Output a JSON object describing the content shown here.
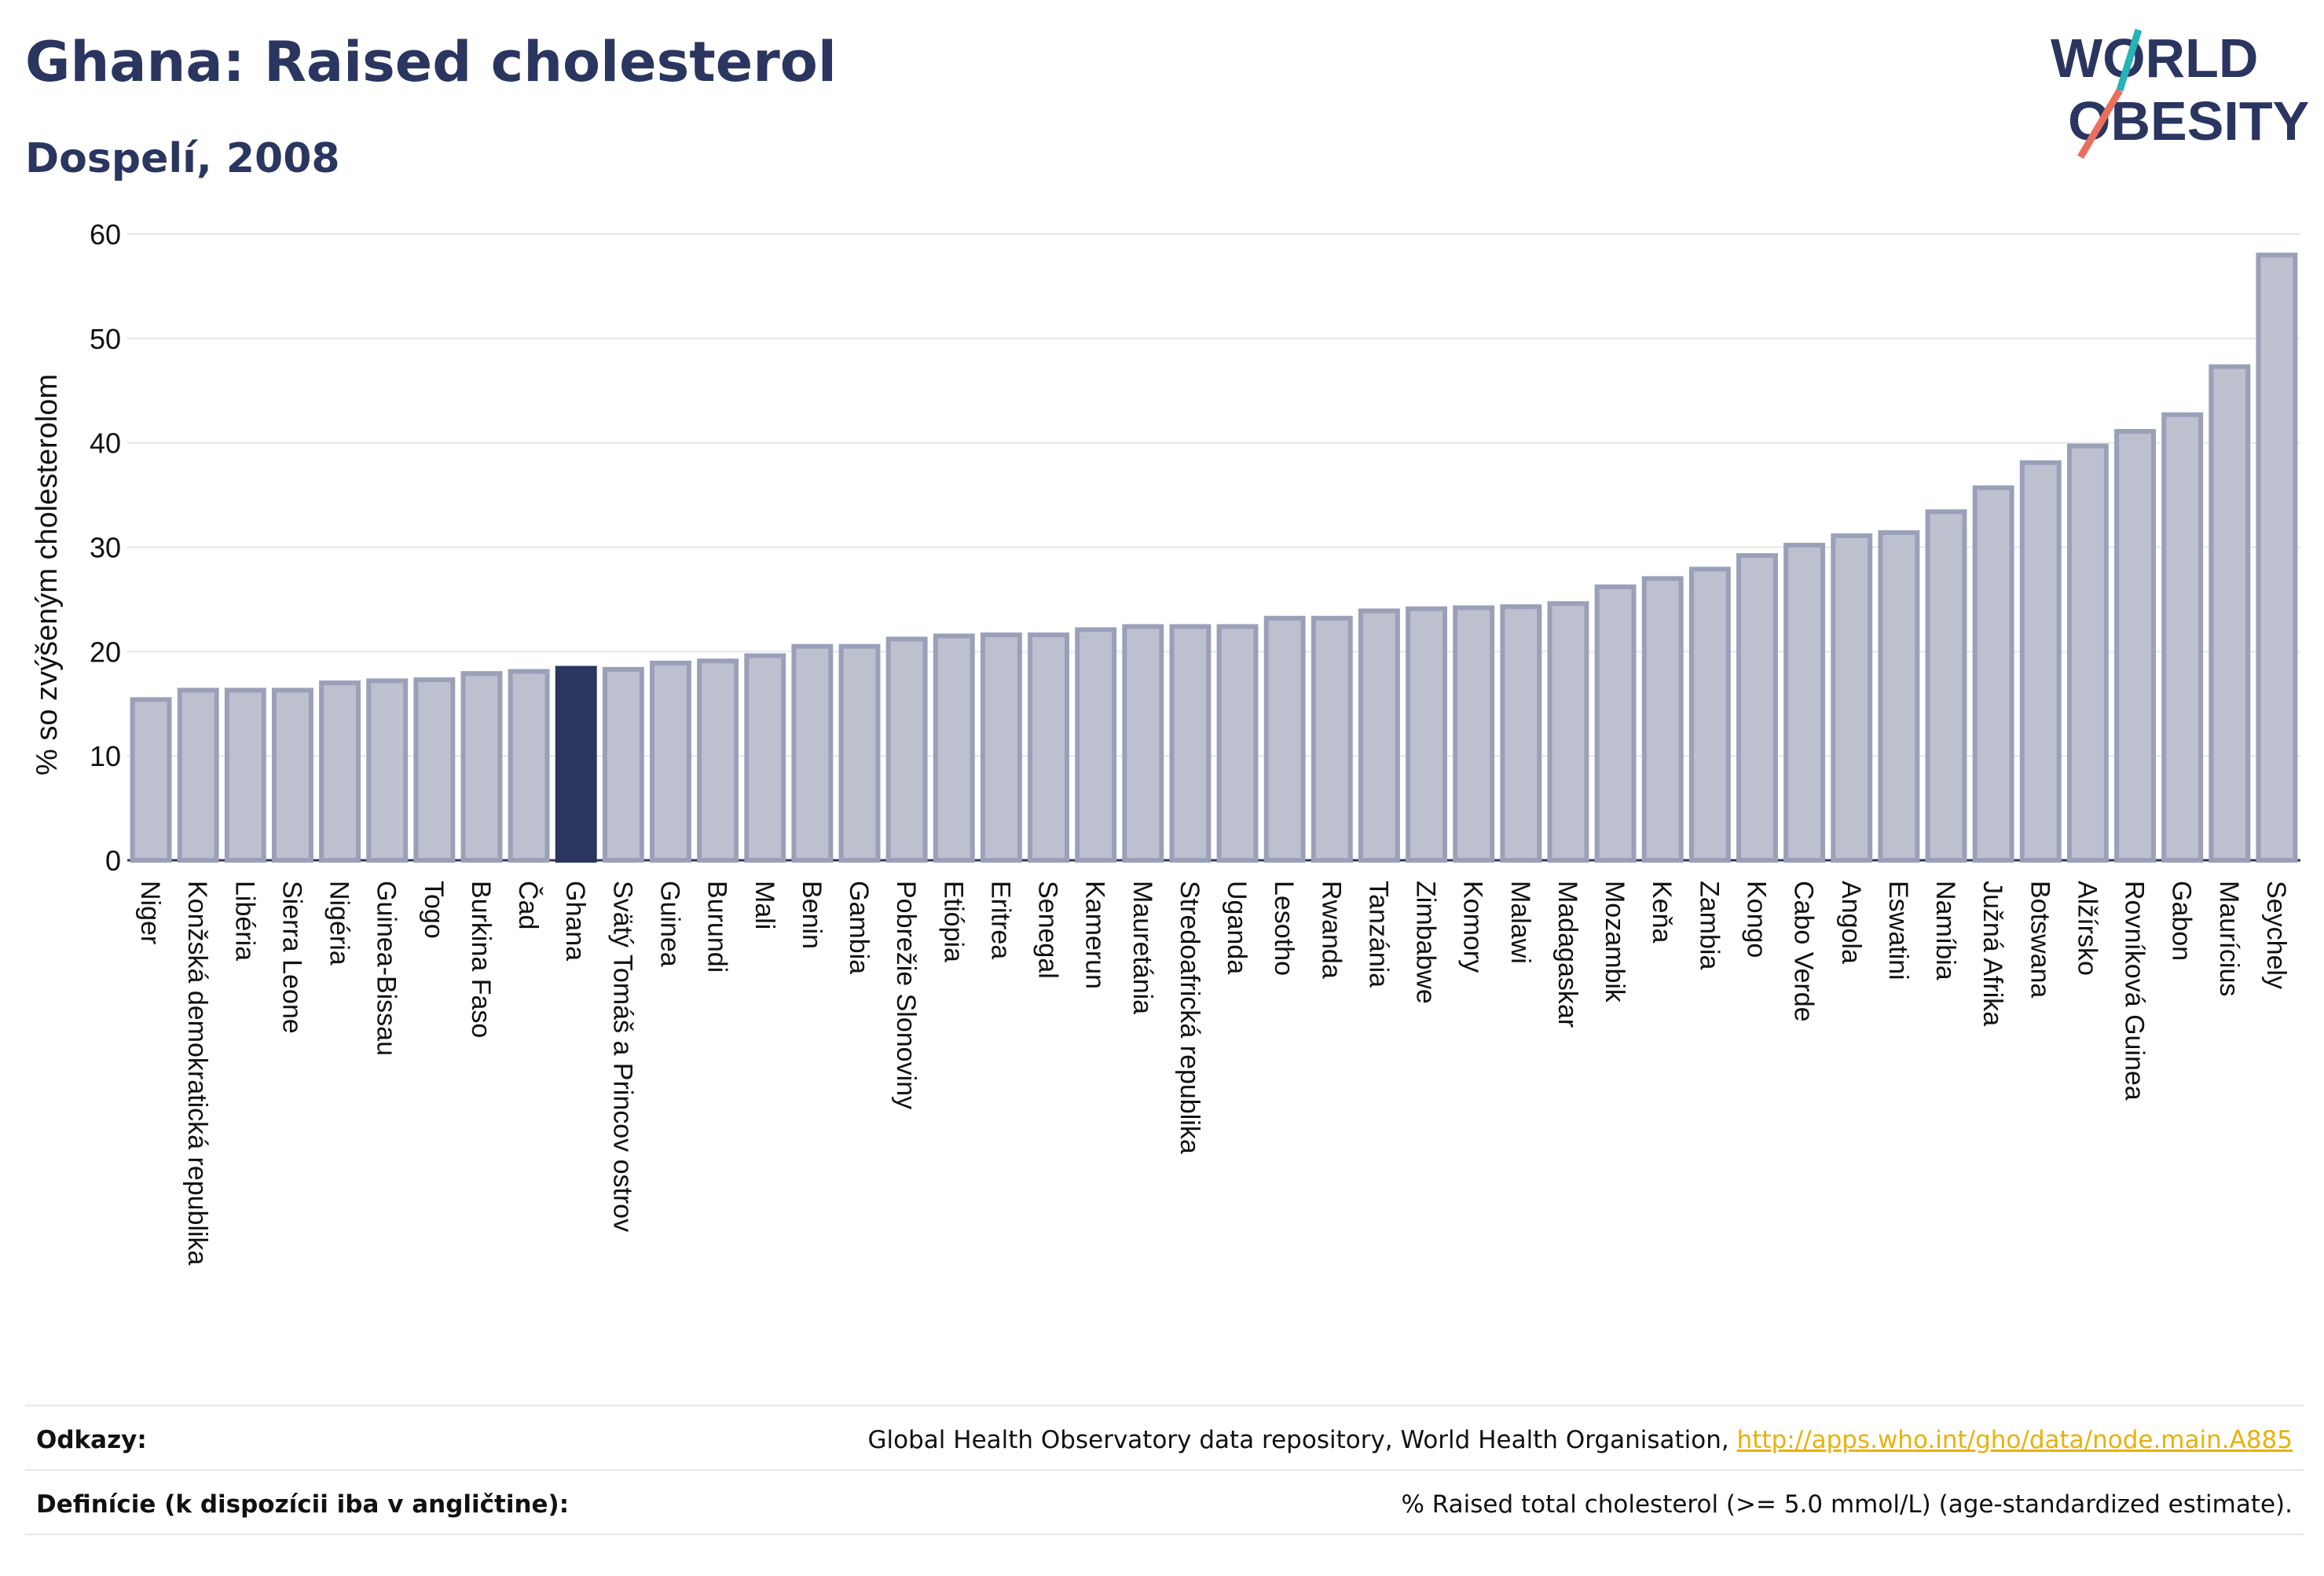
{
  "title": "Ghana: Raised cholesterol",
  "subtitle": "Dospelí, 2008",
  "logo": {
    "line1": "WORLD",
    "line2": "OBESITY"
  },
  "colors": {
    "bar": "#bcc0cf",
    "bar_stroke": "#9aa0b8",
    "highlight": "#2a3560",
    "text": "#2a3560",
    "link": "#e8b10a"
  },
  "footer": {
    "references_label": "Odkazy:",
    "references_text": "Global Health Observatory data repository, World Health Organisation, ",
    "references_link": "http://apps.who.int/gho/data/node.main.A885",
    "definitions_label": "Definície (k dispozícii iba v angličtine):",
    "definitions_text": "% Raised total cholesterol (>= 5.0 mmol/L) (age-standardized estimate)."
  },
  "chart_data": {
    "type": "bar",
    "ylabel": "% so zvýšeným cholesterolom",
    "ylim": [
      0,
      60
    ],
    "yticks": [
      0,
      10,
      20,
      30,
      40,
      50,
      60
    ],
    "highlight": "Ghana",
    "categories": [
      "Niger",
      "Konžská demokratická republika",
      "Libéria",
      "Sierra Leone",
      "Nigéria",
      "Guinea-Bissau",
      "Togo",
      "Burkina Faso",
      "Čad",
      "Ghana",
      "Svätý Tomáš a Princov ostrov",
      "Guinea",
      "Burundi",
      "Mali",
      "Benin",
      "Gambia",
      "Pobrežie Slonoviny",
      "Etiópia",
      "Eritrea",
      "Senegal",
      "Kamerun",
      "Mauretánia",
      "Stredoafrická republika",
      "Uganda",
      "Lesotho",
      "Rwanda",
      "Tanzánia",
      "Zimbabwe",
      "Komory",
      "Malawi",
      "Madagaskar",
      "Mozambik",
      "Keňa",
      "Zambia",
      "Kongo",
      "Cabo Verde",
      "Angola",
      "Eswatini",
      "Namíbia",
      "Južná Afrika",
      "Botswana",
      "Alžírsko",
      "Rovníková Guinea",
      "Gabon",
      "Maurícius",
      "Seychely"
    ],
    "values": [
      15.4,
      16.3,
      16.3,
      16.3,
      17.0,
      17.2,
      17.3,
      17.9,
      18.1,
      18.4,
      18.3,
      18.9,
      19.1,
      19.6,
      20.5,
      20.5,
      21.2,
      21.5,
      21.6,
      21.6,
      22.1,
      22.4,
      22.4,
      22.4,
      23.2,
      23.2,
      23.9,
      24.1,
      24.2,
      24.3,
      24.6,
      26.2,
      27.0,
      27.9,
      29.2,
      30.2,
      31.1,
      31.4,
      33.4,
      35.7,
      38.1,
      39.7,
      41.1,
      42.7,
      47.3,
      58.0
    ]
  }
}
